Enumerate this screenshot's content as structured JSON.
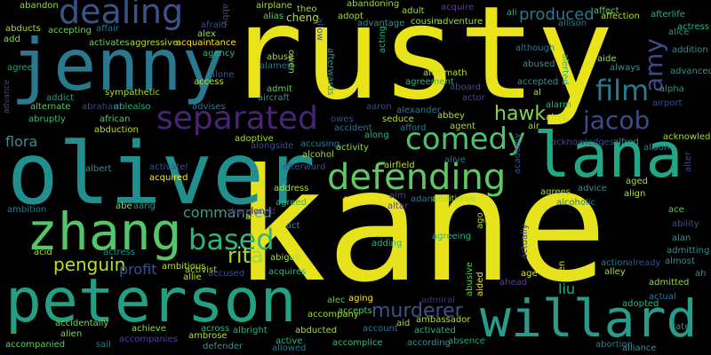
{
  "title": "word cloud",
  "colors": {
    "background": "#000000",
    "yellow": "#e8e21a",
    "teal": "#21918c",
    "green": "#5ec962",
    "purple": "#472d7b",
    "blue": "#3b528b",
    "lime": "#a0da39"
  },
  "words": {
    "kane": "kane",
    "rusty": "rusty",
    "oliver": "oliver",
    "peterson": "peterson",
    "jenny": "jenny",
    "lana": "lana",
    "willard": "willard",
    "zhang": "zhang",
    "dealing": "dealing",
    "separated": "separated",
    "defending": "defending",
    "comedy": "comedy",
    "film": "film",
    "jacob": "jacob",
    "based": "based",
    "amy": "amy",
    "murderer": "murderer",
    "produced": "produced",
    "rita": "rita",
    "penguin": "penguin",
    "hawk": "hawk",
    "commanded": "commanded",
    "profit": "profit",
    "flora": "flora",
    "liu": "liu",
    "abandon": "abandon",
    "abducts": "abducts",
    "add": "add",
    "accepting": "accepting",
    "affair": "affair",
    "activates": "activates",
    "aggressive": "aggressive",
    "acquaintance": "acquaintance",
    "agency": "agency",
    "alone": "alone",
    "access": "access",
    "agree": "agree",
    "addict": "addict",
    "alternate": "alternate",
    "abraham": "abraham",
    "ablealso": "ablealso",
    "abruptly": "abruptly",
    "african": "african",
    "advises": "advises",
    "abduction": "abduction",
    "sympathetic": "sympathetic",
    "advance": "advance",
    "activatel": "activatel",
    "acquired": "acquired",
    "albert": "albert",
    "ambition": "ambition",
    "abe": "abe",
    "aang": "aang",
    "acid": "acid",
    "actress_l": "actress",
    "accompanied": "accompanied",
    "alien": "alien",
    "sail": "sail",
    "accompanies": "accompanies",
    "accidentally": "accidentally",
    "achieve": "achieve",
    "ambrose": "ambrose",
    "across": "across",
    "defender": "defender",
    "albright": "albright",
    "active": "active",
    "allowed": "allowed",
    "abducted": "abducted",
    "accomplice": "accomplice",
    "account": "account",
    "aid": "aid",
    "activated": "activated",
    "according": "according",
    "absence": "absence",
    "accompany": "accompany",
    "accepts": "accepts",
    "alec": "alec",
    "aging": "aging",
    "admiral": "admiral",
    "ambassador": "ambassador",
    "ambitious": "ambitious",
    "allie": "allie",
    "activist": "activist",
    "accused": "accused",
    "abigail": "abigail",
    "acquires": "acquires",
    "abu": "abu",
    "act": "act",
    "abandoned": "abandoned",
    "agreed": "agreed",
    "address": "address",
    "afterward": "afterward",
    "alongside": "alongside",
    "adoptive": "adoptive",
    "accusing": "accusing",
    "alcohol": "alcohol",
    "activity": "activity",
    "along": "along",
    "accident": "accident",
    "afford": "afford",
    "agent": "agent",
    "alive": "alive",
    "airfield": "airfield",
    "adam": "adam",
    "additional": "additional",
    "aim": "aim",
    "altar": "altar",
    "accuses": "accuses",
    "agreeing": "agreeing",
    "adding": "adding",
    "ago": "ago",
    "aided": "aided",
    "abusive": "abusive",
    "age": "age",
    "allen": "allen",
    "actually": "actually",
    "ahead": "ahead",
    "adopted": "adopted",
    "actual": "actual",
    "abortion": "abortion",
    "alliance": "alliance",
    "rate": "rate",
    "admitted": "admitted",
    "admitting": "admitting",
    "almost": "almost",
    "alley": "alley",
    "action": "action",
    "already": "already",
    "ah": "ah",
    "alan": "alan",
    "ability": "ability",
    "ace": "ace",
    "align": "align",
    "aged": "aged",
    "advice": "advice",
    "agrees": "agrees",
    "alcoholic": "alcoholic",
    "academy": "academy",
    "alter": "alter",
    "alison": "alison",
    "alfred": "alfred",
    "acknowledges": "acknowledges",
    "acknowledge": "acknowledge",
    "air": "air",
    "alert": "alert",
    "alarm": "alarm",
    "al": "al",
    "accepted": "accepted",
    "airport": "airport",
    "alpha": "alpha",
    "advanced": "advanced",
    "always": "always",
    "aide": "aide",
    "alerted": "alerted",
    "abused": "abused",
    "although": "although",
    "allison": "allison",
    "ali": "ali",
    "affect": "affect",
    "affection": "affection",
    "afterlife": "afterlife",
    "alice": "alice",
    "actress_r": "actress",
    "addition": "addition",
    "abby": "abby",
    "afraid": "afraid",
    "alex": "alex",
    "adult": "adult",
    "acquire": "acquire",
    "abandoning": "abandoning",
    "cousin": "cousin",
    "adventure": "adventure",
    "adopt": "adopt",
    "advantage": "advantage",
    "airplane": "airplane",
    "alias": "alias",
    "theo": "theo",
    "cheng": "cheng",
    "allow": "allow",
    "abuse": "abuse",
    "alamein": "alamein",
    "admit": "admit",
    "aircraft": "aircraft",
    "owen": "owen",
    "afterwards": "afterwards",
    "acting": "acting",
    "aftermath": "aftermath",
    "aboard": "aboard",
    "agreement": "agreement",
    "aaron": "aaron",
    "alexander": "alexander",
    "seduce": "seduce",
    "abbey": "abbey",
    "actor": "actor",
    "owes": "owes"
  }
}
